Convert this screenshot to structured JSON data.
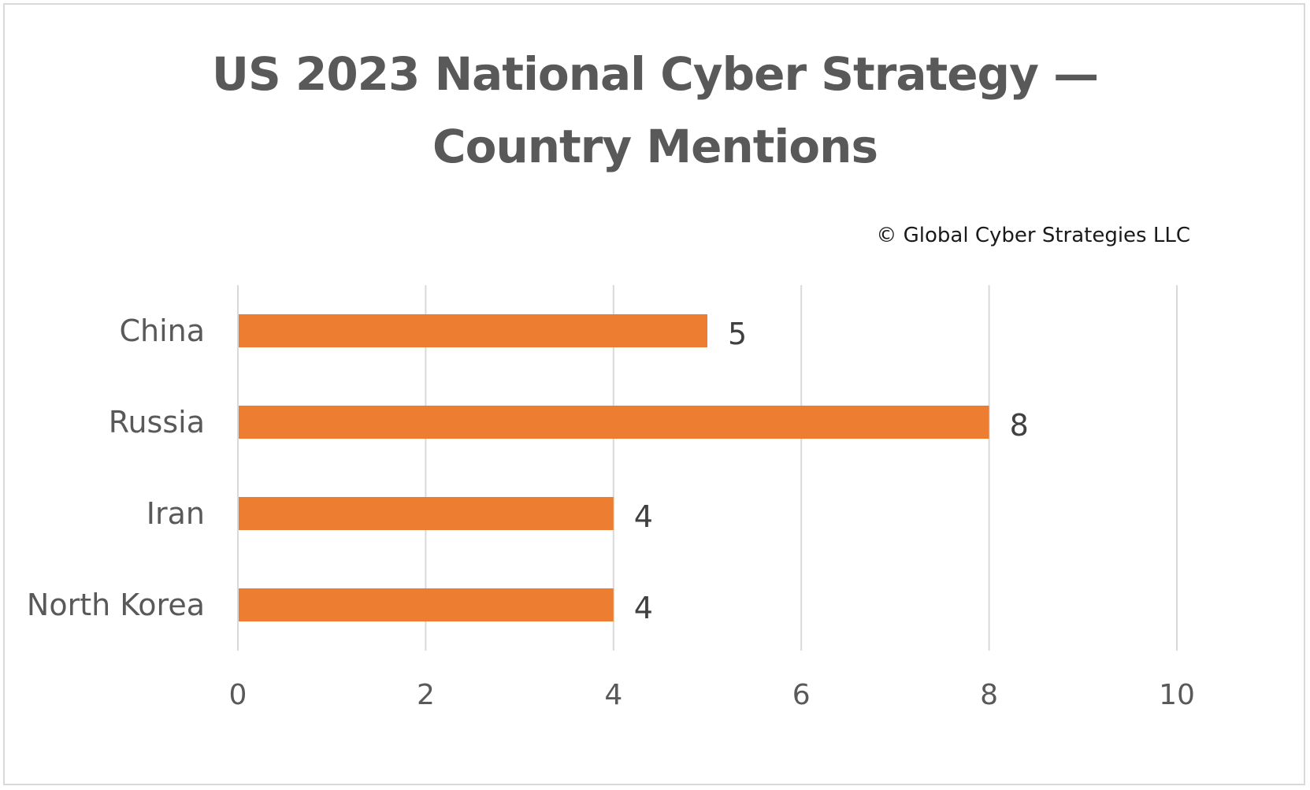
{
  "chart_data": {
    "type": "bar",
    "orientation": "horizontal",
    "title": "US 2023 National Cyber Strategy — Country Mentions",
    "title_lines": [
      "US 2023 National Cyber Strategy —",
      "Country Mentions"
    ],
    "annotation": "© Global Cyber Strategies LLC",
    "categories": [
      "China",
      "Russia",
      "Iran",
      "North Korea"
    ],
    "values": [
      5,
      8,
      4,
      4
    ],
    "xlim": [
      0,
      10
    ],
    "x_ticks": [
      0,
      2,
      4,
      6,
      8,
      10
    ],
    "grid": true,
    "legend": "none",
    "data_labels": true,
    "bar_color": "#ed7d31",
    "grid_color": "#d9d9d9"
  }
}
